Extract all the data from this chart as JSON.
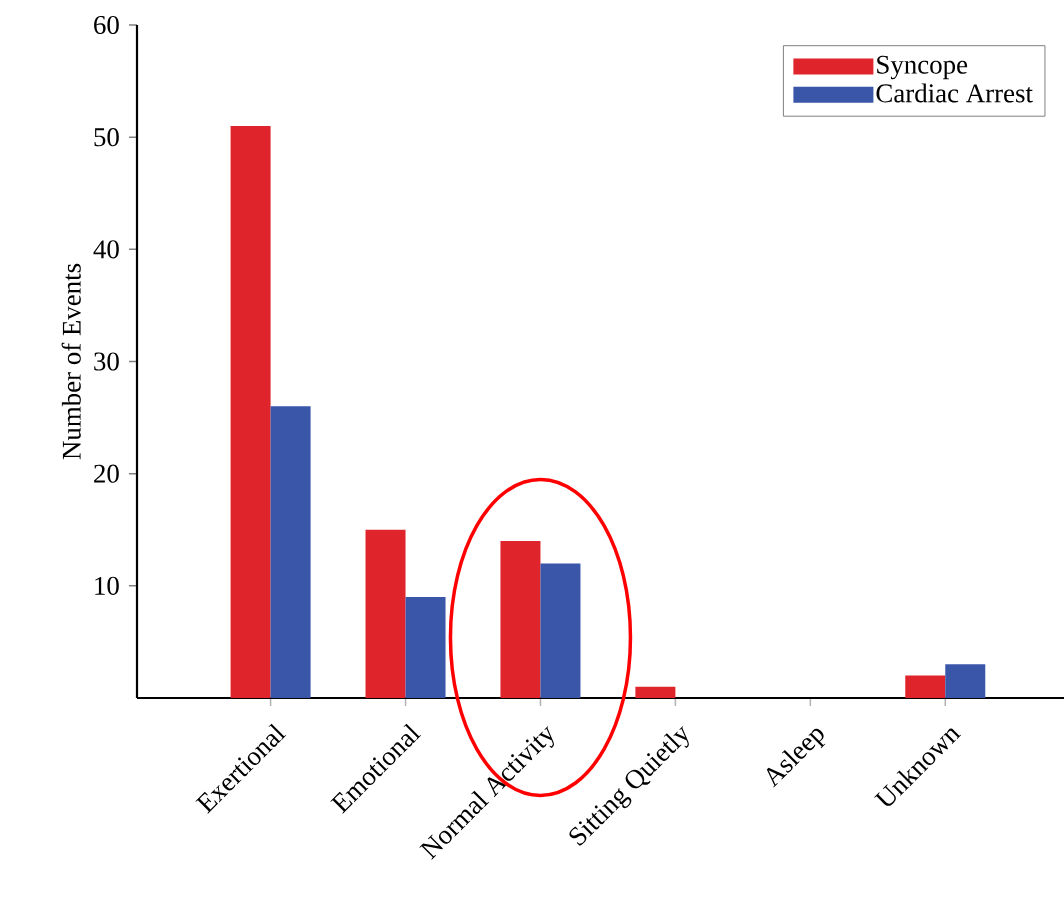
{
  "chart_data": {
    "type": "bar",
    "ylabel": "Number of Events",
    "categories": [
      "Exertional",
      "Emotional",
      "Normal Activity",
      "Sitting Quietly",
      "Asleep",
      "Unknown"
    ],
    "series": [
      {
        "name": "Syncope",
        "color": "#e0242b",
        "values": [
          51,
          15,
          14,
          1,
          0,
          2
        ]
      },
      {
        "name": "Cardiac Arrest",
        "color": "#3a56a8",
        "values": [
          26,
          9,
          12,
          0,
          0,
          3
        ]
      }
    ],
    "ylim": [
      0,
      60
    ],
    "yticks": [
      10,
      20,
      30,
      40,
      50,
      60
    ],
    "grid": false,
    "legend": "top right"
  }
}
